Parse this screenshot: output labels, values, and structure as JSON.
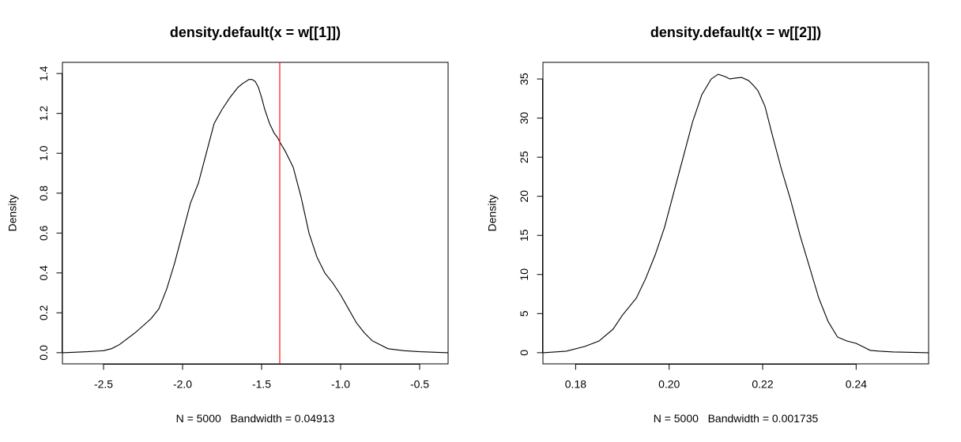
{
  "chart_data": [
    {
      "type": "line",
      "title": "density.default(x = w[[1]])",
      "xlabel": "N = 5000   Bandwidth = 0.04913",
      "ylabel": "Density",
      "xlim": [
        -2.76,
        -0.32
      ],
      "ylim": [
        0,
        1.4
      ],
      "xticks": [
        -2.5,
        -2.0,
        -1.5,
        -1.0,
        -0.5
      ],
      "xtick_labels": [
        "-2.5",
        "-2.0",
        "-1.5",
        "-1.0",
        "-0.5"
      ],
      "yticks": [
        0.0,
        0.2,
        0.4,
        0.6,
        0.8,
        1.0,
        1.2,
        1.4
      ],
      "ytick_labels": [
        "0.0",
        "0.2",
        "0.4",
        "0.6",
        "0.8",
        "1.0",
        "1.2",
        "1.4"
      ],
      "grid": false,
      "series": [
        {
          "color": "#000000",
          "x": [
            -2.76,
            -2.6,
            -2.5,
            -2.45,
            -2.4,
            -2.3,
            -2.2,
            -2.15,
            -2.1,
            -2.05,
            -2.0,
            -1.95,
            -1.9,
            -1.85,
            -1.8,
            -1.75,
            -1.7,
            -1.65,
            -1.62,
            -1.6,
            -1.58,
            -1.56,
            -1.54,
            -1.52,
            -1.5,
            -1.48,
            -1.45,
            -1.42,
            -1.4,
            -1.38,
            -1.35,
            -1.3,
            -1.25,
            -1.2,
            -1.15,
            -1.1,
            -1.05,
            -1.0,
            -0.95,
            -0.9,
            -0.85,
            -0.8,
            -0.7,
            -0.6,
            -0.5,
            -0.32
          ],
          "y": [
            0.0,
            0.005,
            0.01,
            0.02,
            0.04,
            0.1,
            0.17,
            0.22,
            0.32,
            0.45,
            0.6,
            0.75,
            0.85,
            1.0,
            1.15,
            1.22,
            1.28,
            1.33,
            1.35,
            1.36,
            1.37,
            1.37,
            1.36,
            1.33,
            1.28,
            1.22,
            1.15,
            1.1,
            1.08,
            1.05,
            1.01,
            0.93,
            0.78,
            0.6,
            0.48,
            0.4,
            0.35,
            0.29,
            0.22,
            0.15,
            0.1,
            0.06,
            0.02,
            0.01,
            0.005,
            0.0
          ]
        }
      ],
      "vline": {
        "x": -1.385,
        "color": "#ff0000"
      }
    },
    {
      "type": "line",
      "title": "density.default(x = w[[2]])",
      "xlabel": "N = 5000   Bandwidth = 0.001735",
      "ylabel": "Density",
      "xlim": [
        0.173,
        0.2555
      ],
      "ylim": [
        0,
        35.7
      ],
      "xticks": [
        0.18,
        0.2,
        0.22,
        0.24
      ],
      "xtick_labels": [
        "0.18",
        "0.20",
        "0.22",
        "0.24"
      ],
      "yticks": [
        0,
        5,
        10,
        15,
        20,
        25,
        30,
        35
      ],
      "ytick_labels": [
        "0",
        "5",
        "10",
        "15",
        "20",
        "25",
        "30",
        "35"
      ],
      "grid": false,
      "series": [
        {
          "color": "#000000",
          "x": [
            0.173,
            0.178,
            0.182,
            0.185,
            0.188,
            0.19,
            0.193,
            0.195,
            0.197,
            0.199,
            0.201,
            0.203,
            0.205,
            0.207,
            0.209,
            0.2105,
            0.212,
            0.213,
            0.214,
            0.2155,
            0.217,
            0.218,
            0.219,
            0.2205,
            0.222,
            0.224,
            0.226,
            0.228,
            0.23,
            0.232,
            0.234,
            0.236,
            0.238,
            0.24,
            0.242,
            0.243,
            0.245,
            0.248,
            0.2555
          ],
          "y": [
            0.0,
            0.2,
            0.8,
            1.5,
            3.0,
            4.8,
            7.0,
            9.5,
            12.5,
            16.0,
            20.5,
            25.0,
            29.5,
            33.0,
            35.0,
            35.6,
            35.3,
            35.0,
            35.1,
            35.2,
            34.8,
            34.2,
            33.5,
            31.5,
            28.0,
            23.5,
            19.5,
            15.0,
            11.0,
            7.0,
            4.0,
            2.0,
            1.5,
            1.2,
            0.6,
            0.3,
            0.2,
            0.1,
            0.0
          ]
        }
      ]
    }
  ]
}
